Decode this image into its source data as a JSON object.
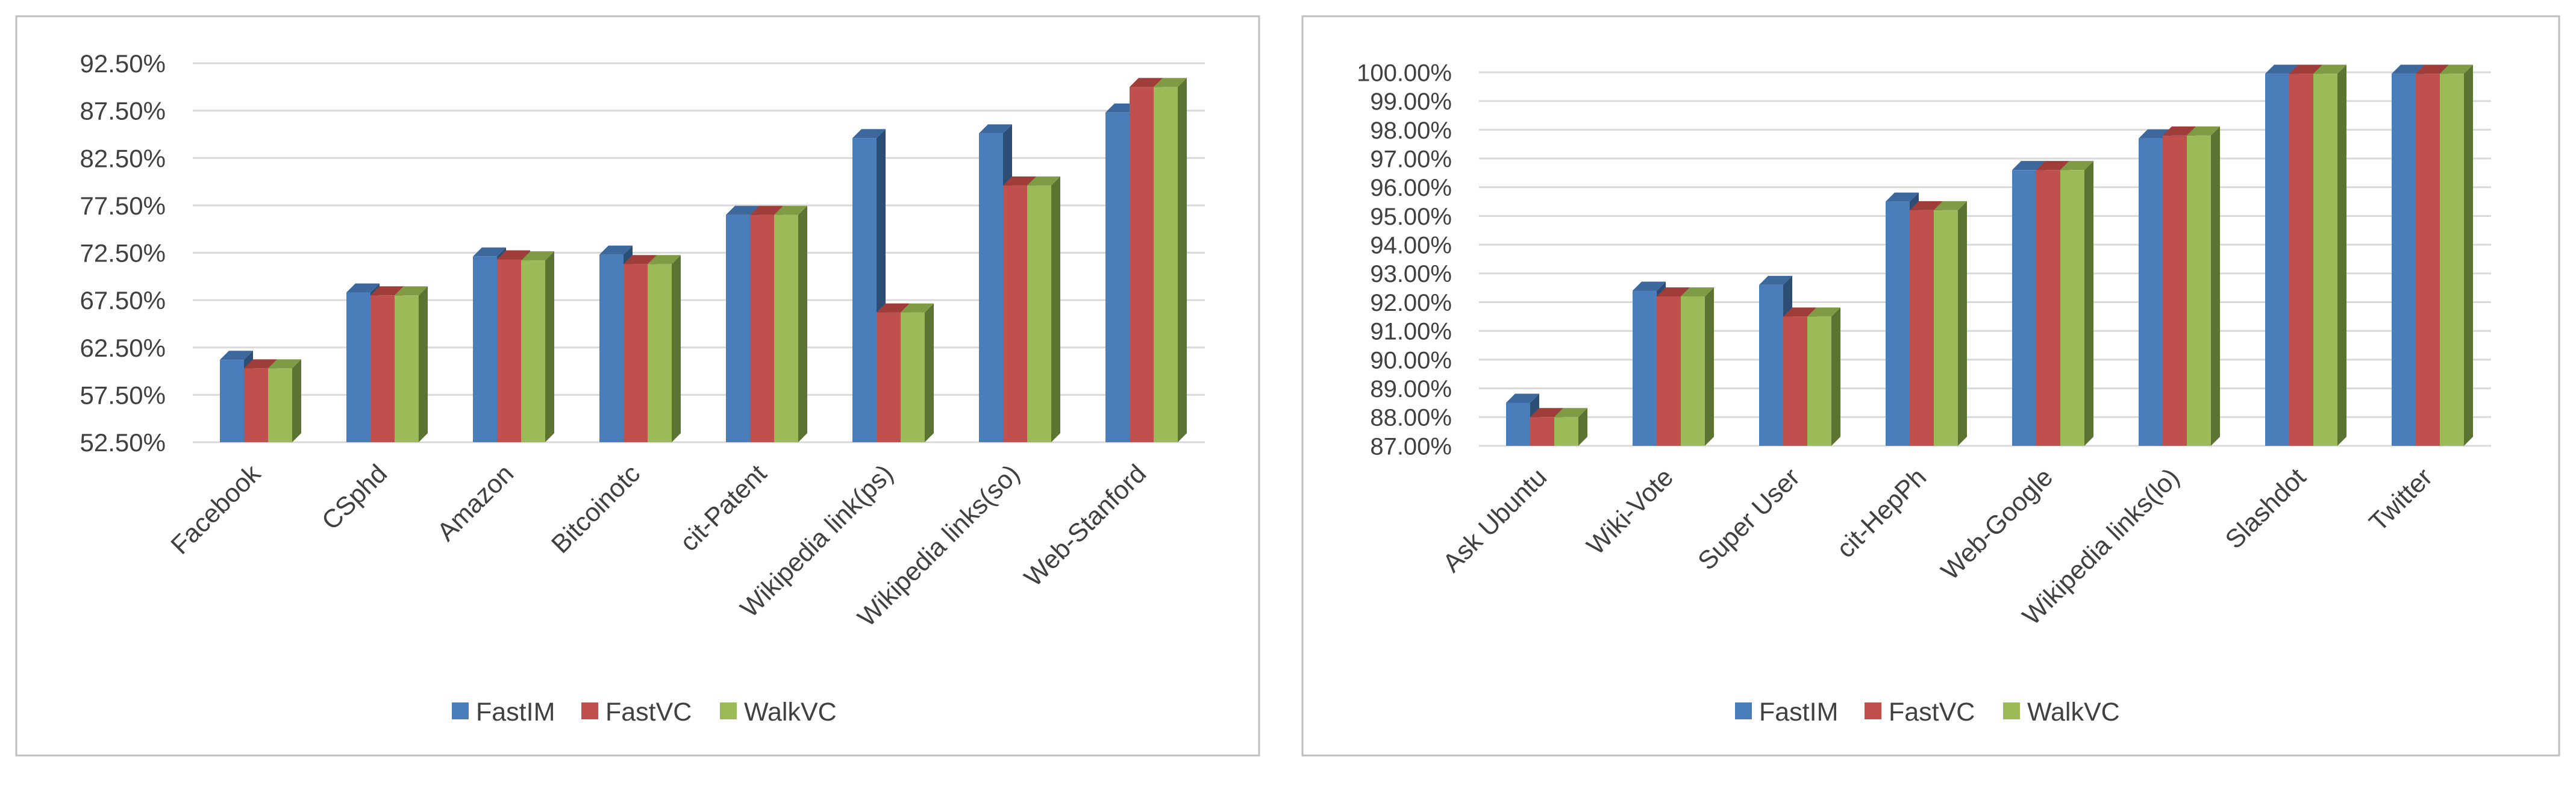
{
  "chart_data": [
    {
      "type": "bar",
      "categories": [
        "Facebook",
        "CSphd",
        "Amazon",
        "Bitcoinotc",
        "cit-Patent",
        "Wikipedia link(ps)",
        "Wikipedia links(so)",
        "Web-Stanford"
      ],
      "series": [
        {
          "name": "FastIM",
          "values": [
            61.2,
            68.3,
            72.1,
            72.3,
            76.5,
            84.6,
            85.1,
            87.3
          ]
        },
        {
          "name": "FastVC",
          "values": [
            60.3,
            68.0,
            71.8,
            71.3,
            76.5,
            66.2,
            79.6,
            90.0
          ]
        },
        {
          "name": "WalkVC",
          "values": [
            60.3,
            68.0,
            71.7,
            71.3,
            76.5,
            66.2,
            79.6,
            90.0
          ]
        }
      ],
      "yticks": [
        "52.50%",
        "57.50%",
        "62.50%",
        "67.50%",
        "72.50%",
        "77.50%",
        "82.50%",
        "87.50%",
        "92.50%"
      ],
      "ylim": [
        52.5,
        92.5
      ],
      "grid": true,
      "legend": "bottom"
    },
    {
      "type": "bar",
      "categories": [
        "Ask Ubuntu",
        "Wiki-Vote",
        "Super User",
        "cit-HepPh",
        "Web-Google",
        "Wikipedia links(lo)",
        "Slashdot",
        "Twitter"
      ],
      "series": [
        {
          "name": "FastIM",
          "values": [
            88.5,
            92.4,
            92.6,
            95.5,
            96.6,
            97.7,
            99.95,
            99.95
          ]
        },
        {
          "name": "FastVC",
          "values": [
            88.0,
            92.2,
            91.5,
            95.2,
            96.6,
            97.8,
            99.95,
            99.95
          ]
        },
        {
          "name": "WalkVC",
          "values": [
            88.0,
            92.2,
            91.5,
            95.2,
            96.6,
            97.8,
            99.95,
            99.95
          ]
        }
      ],
      "yticks": [
        "87.00%",
        "88.00%",
        "89.00%",
        "90.00%",
        "91.00%",
        "92.00%",
        "93.00%",
        "94.00%",
        "95.00%",
        "96.00%",
        "97.00%",
        "98.00%",
        "99.00%",
        "100.00%"
      ],
      "ylim": [
        87,
        100
      ],
      "grid": true,
      "legend": "bottom"
    }
  ],
  "colors": {
    "FastIM": {
      "front": "#4a7ebb",
      "side": "#2c4d74",
      "top": "#3d689e"
    },
    "FastVC": {
      "front": "#c0504d",
      "side": "#7a2e2c",
      "top": "#9e3d3a"
    },
    "WalkVC": {
      "front": "#9bbb59",
      "side": "#5c7431",
      "top": "#7f9c45"
    },
    "grid": "#d9d9d9",
    "border": "#bfbfbf",
    "text": "#404040"
  }
}
